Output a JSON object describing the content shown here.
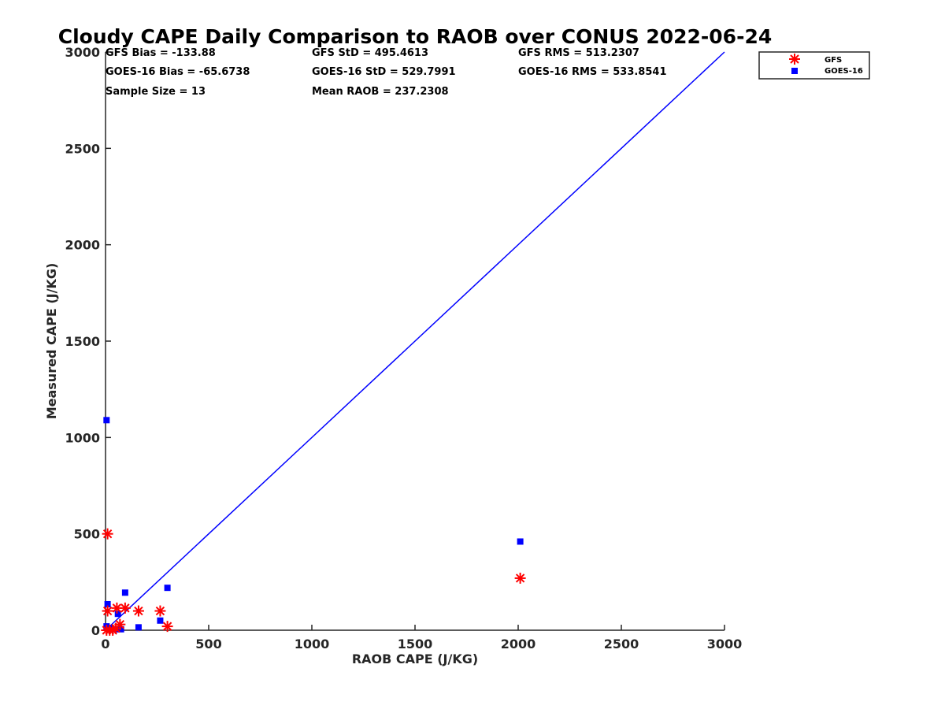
{
  "chart_data": {
    "type": "scatter",
    "title": "Cloudy CAPE Daily Comparison to RAOB over CONUS 2022-06-24",
    "xlabel": "RAOB CAPE (J/KG)",
    "ylabel": "Measured CAPE (J/KG)",
    "xlim": [
      0,
      3000
    ],
    "ylim": [
      0,
      3000
    ],
    "xticks": [
      "0",
      "500",
      "1000",
      "1500",
      "2000",
      "2500",
      "3000"
    ],
    "yticks": [
      "0",
      "500",
      "1000",
      "1500",
      "2000",
      "2500",
      "3000"
    ],
    "grid": false,
    "legend_position": "top-right, outside plot",
    "reference_line": {
      "type": "one-to-one",
      "color": "#0000ff",
      "points": [
        [
          0,
          0
        ],
        [
          3000,
          3000
        ]
      ]
    },
    "stats": [
      [
        "GFS Bias = -133.88",
        "GFS StD = 495.4613",
        "GFS RMS = 513.2307"
      ],
      [
        "GOES-16 Bias = -65.6738",
        "GOES-16 StD = 529.7991",
        "GOES-16 RMS = 533.8541"
      ],
      [
        "Sample Size = 13",
        "Mean RAOB = 237.2308",
        ""
      ]
    ],
    "series": [
      {
        "name": "GFS",
        "marker": "asterisk",
        "color": "#ff0000",
        "points": [
          [
            10,
            500
          ],
          [
            10,
            100
          ],
          [
            5,
            0
          ],
          [
            20,
            0
          ],
          [
            35,
            0
          ],
          [
            55,
            115
          ],
          [
            70,
            30
          ],
          [
            95,
            115
          ],
          [
            160,
            100
          ],
          [
            265,
            100
          ],
          [
            300,
            20
          ],
          [
            2010,
            270
          ],
          [
            50,
            10
          ]
        ]
      },
      {
        "name": "GOES-16",
        "marker": "square",
        "color": "#0000ff",
        "points": [
          [
            5,
            1090
          ],
          [
            10,
            135
          ],
          [
            5,
            20
          ],
          [
            20,
            10
          ],
          [
            35,
            5
          ],
          [
            60,
            85
          ],
          [
            75,
            5
          ],
          [
            95,
            195
          ],
          [
            160,
            15
          ],
          [
            265,
            50
          ],
          [
            300,
            220
          ],
          [
            2010,
            460
          ],
          [
            50,
            5
          ]
        ]
      }
    ]
  }
}
